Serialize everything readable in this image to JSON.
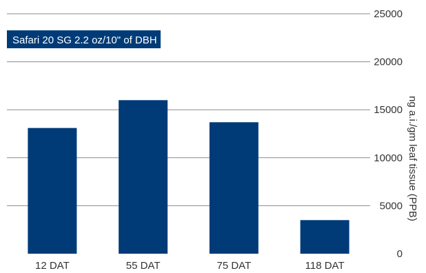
{
  "chart_data": {
    "type": "bar",
    "categories": [
      "12 DAT",
      "55 DAT",
      "75 DAT",
      "118 DAT"
    ],
    "series": [
      {
        "name": "Safari 20 SG 2.2 oz/10\" of DBH",
        "values": [
          13100,
          16000,
          13700,
          3500
        ]
      }
    ],
    "ylabel": "ng a.i./gm leaf tissue (PPB)",
    "xlabel": "",
    "ylim": [
      0,
      25000
    ],
    "yticks": [
      0,
      5000,
      10000,
      15000,
      20000,
      25000
    ],
    "y_axis_side": "right",
    "grid": true,
    "legend": "top-left",
    "colors": {
      "bar": "#003b78",
      "grid": "#8a8a8a",
      "legend_bg": "#003b78",
      "text": "#333333"
    }
  }
}
